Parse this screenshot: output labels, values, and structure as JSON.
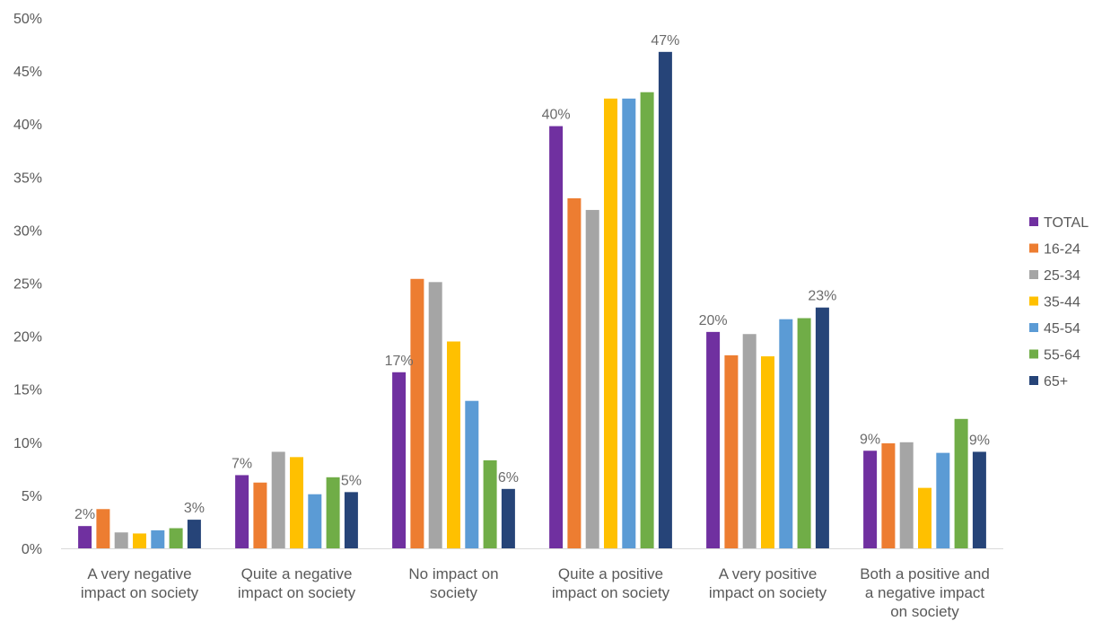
{
  "chart_data": {
    "type": "bar",
    "title": "",
    "xlabel": "",
    "ylabel": "",
    "ylim": [
      0,
      50
    ],
    "y_tick_labels": [
      "0%",
      "5%",
      "10%",
      "15%",
      "20%",
      "25%",
      "30%",
      "35%",
      "40%",
      "45%",
      "50%"
    ],
    "grid": false,
    "legend_position": "right",
    "categories": [
      [
        "A very negative",
        "impact on society"
      ],
      [
        "Quite a negative",
        "impact on society"
      ],
      [
        "No impact on",
        "society"
      ],
      [
        "Quite a positive",
        "impact on society"
      ],
      [
        "A very positive",
        "impact on society"
      ],
      [
        "Both a positive and",
        "a negative impact",
        "on society"
      ]
    ],
    "series": [
      {
        "name": "TOTAL",
        "color": "#7030A0",
        "values": [
          2.1,
          6.9,
          16.6,
          39.8,
          20.4,
          9.2
        ],
        "labels": [
          "2%",
          "7%",
          "17%",
          "40%",
          "20%",
          "9%"
        ]
      },
      {
        "name": "16-24",
        "color": "#ED7D31",
        "values": [
          3.7,
          6.2,
          25.4,
          33.0,
          18.2,
          9.9
        ],
        "labels": [
          "",
          "",
          "",
          "",
          "",
          ""
        ]
      },
      {
        "name": "25-34",
        "color": "#A5A5A5",
        "values": [
          1.5,
          9.1,
          25.1,
          31.9,
          20.2,
          10.0
        ],
        "labels": [
          "",
          "",
          "",
          "",
          "",
          ""
        ]
      },
      {
        "name": "35-44",
        "color": "#FFC000",
        "values": [
          1.4,
          8.6,
          19.5,
          42.4,
          18.1,
          5.7
        ],
        "labels": [
          "",
          "",
          "",
          "",
          "",
          ""
        ]
      },
      {
        "name": "45-54",
        "color": "#5B9BD5",
        "values": [
          1.7,
          5.1,
          13.9,
          42.4,
          21.6,
          9.0
        ],
        "labels": [
          "",
          "",
          "",
          "",
          "",
          ""
        ]
      },
      {
        "name": "55-64",
        "color": "#70AD47",
        "values": [
          1.9,
          6.7,
          8.3,
          43.0,
          21.7,
          12.2
        ],
        "labels": [
          "",
          "",
          "",
          "",
          "",
          ""
        ]
      },
      {
        "name": "65+",
        "color": "#264478",
        "values": [
          2.7,
          5.3,
          5.6,
          46.8,
          22.7,
          9.1
        ],
        "labels": [
          "3%",
          "5%",
          "6%",
          "47%",
          "23%",
          "9%"
        ]
      }
    ]
  }
}
